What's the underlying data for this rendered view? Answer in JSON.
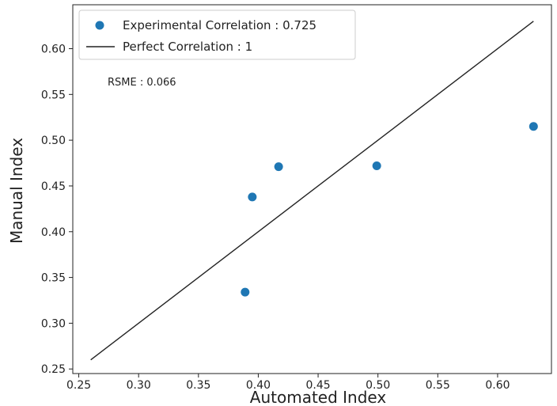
{
  "chart_data": {
    "type": "scatter",
    "xlabel": "Automated Index",
    "ylabel": "Manual Index",
    "xlim": [
      0.245,
      0.645
    ],
    "ylim": [
      0.245,
      0.648
    ],
    "x_ticks": [
      "0.25",
      "0.30",
      "0.35",
      "0.40",
      "0.45",
      "0.50",
      "0.55",
      "0.60"
    ],
    "y_ticks": [
      "0.25",
      "0.30",
      "0.35",
      "0.40",
      "0.45",
      "0.50",
      "0.55",
      "0.60"
    ],
    "grid": false,
    "legend_position": "top-left",
    "series": [
      {
        "name": "Experimental Correlation : 0.725",
        "kind": "scatter",
        "color": "#1f77b4",
        "points": [
          {
            "x": 0.389,
            "y": 0.334
          },
          {
            "x": 0.395,
            "y": 0.438
          },
          {
            "x": 0.417,
            "y": 0.471
          },
          {
            "x": 0.499,
            "y": 0.472
          },
          {
            "x": 0.63,
            "y": 0.515
          }
        ]
      },
      {
        "name": "Perfect Correlation : 1",
        "kind": "line",
        "color": "#222222",
        "points": [
          {
            "x": 0.26,
            "y": 0.26
          },
          {
            "x": 0.63,
            "y": 0.63
          }
        ]
      }
    ],
    "annotations": [
      {
        "text": "RSME : 0.066"
      }
    ]
  }
}
